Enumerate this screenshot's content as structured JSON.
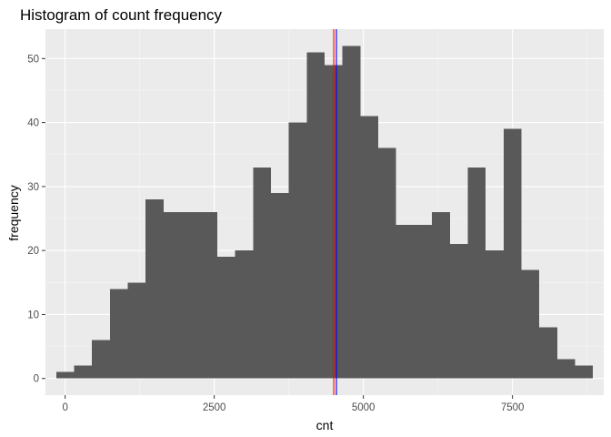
{
  "chart_data": {
    "type": "bar",
    "title": "Histogram of count frequency",
    "xlabel": "cnt",
    "ylabel": "frequency",
    "bin_width": 300,
    "bins": [
      {
        "x0": -150,
        "x1": 150,
        "count": 1
      },
      {
        "x0": 150,
        "x1": 450,
        "count": 2
      },
      {
        "x0": 450,
        "x1": 750,
        "count": 6
      },
      {
        "x0": 750,
        "x1": 1050,
        "count": 14
      },
      {
        "x0": 1050,
        "x1": 1350,
        "count": 15
      },
      {
        "x0": 1350,
        "x1": 1650,
        "count": 28
      },
      {
        "x0": 1650,
        "x1": 1950,
        "count": 26
      },
      {
        "x0": 1950,
        "x1": 2250,
        "count": 26
      },
      {
        "x0": 2250,
        "x1": 2550,
        "count": 26
      },
      {
        "x0": 2550,
        "x1": 2850,
        "count": 19
      },
      {
        "x0": 2850,
        "x1": 3150,
        "count": 20
      },
      {
        "x0": 3150,
        "x1": 3450,
        "count": 33
      },
      {
        "x0": 3450,
        "x1": 3750,
        "count": 29
      },
      {
        "x0": 3750,
        "x1": 4050,
        "count": 40
      },
      {
        "x0": 4050,
        "x1": 4350,
        "count": 51
      },
      {
        "x0": 4350,
        "x1": 4650,
        "count": 49
      },
      {
        "x0": 4650,
        "x1": 4950,
        "count": 52
      },
      {
        "x0": 4950,
        "x1": 5250,
        "count": 41
      },
      {
        "x0": 5250,
        "x1": 5550,
        "count": 36
      },
      {
        "x0": 5550,
        "x1": 5850,
        "count": 24
      },
      {
        "x0": 5850,
        "x1": 6150,
        "count": 24
      },
      {
        "x0": 6150,
        "x1": 6450,
        "count": 26
      },
      {
        "x0": 6450,
        "x1": 6750,
        "count": 21
      },
      {
        "x0": 6750,
        "x1": 7050,
        "count": 33
      },
      {
        "x0": 7050,
        "x1": 7350,
        "count": 20
      },
      {
        "x0": 7350,
        "x1": 7650,
        "count": 39
      },
      {
        "x0": 7650,
        "x1": 7950,
        "count": 17
      },
      {
        "x0": 7950,
        "x1": 8250,
        "count": 8
      },
      {
        "x0": 8250,
        "x1": 8550,
        "count": 3
      },
      {
        "x0": 8550,
        "x1": 8850,
        "count": 2
      }
    ],
    "xlim": [
      -330,
      9030
    ],
    "ylim": [
      -2.6,
      54.6
    ],
    "x_ticks": [
      0,
      2500,
      5000,
      7500
    ],
    "x_tick_labels": [
      "0",
      "2500",
      "5000",
      "7500"
    ],
    "y_ticks": [
      0,
      10,
      20,
      30,
      40,
      50
    ],
    "y_tick_labels": [
      "0",
      "10",
      "20",
      "30",
      "40",
      "50"
    ],
    "vlines": [
      {
        "x": 4504,
        "color": "#ff0000"
      },
      {
        "x": 4548,
        "color": "#0000ff"
      }
    ],
    "grid": true,
    "colors": {
      "bar_fill": "#595959",
      "panel_background": "#ebebeb",
      "grid_major": "#ffffff",
      "grid_minor": "#f5f5f5",
      "tick_color": "#333333"
    }
  }
}
